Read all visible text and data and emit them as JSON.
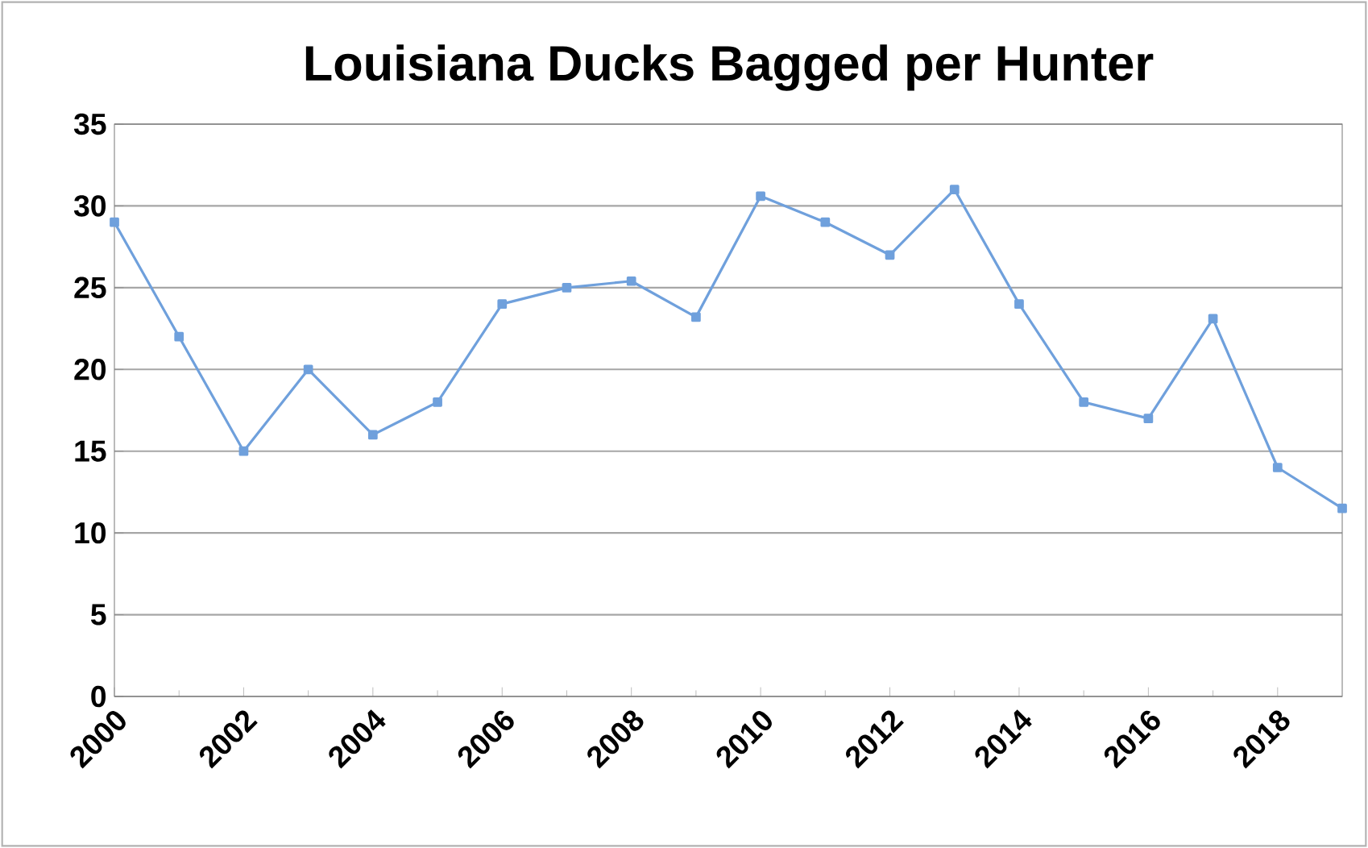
{
  "chart_data": {
    "type": "line",
    "title": "Louisiana Ducks Bagged per Hunter",
    "x": [
      2000,
      2001,
      2002,
      2003,
      2004,
      2005,
      2006,
      2007,
      2008,
      2009,
      2010,
      2011,
      2012,
      2013,
      2014,
      2015,
      2016,
      2017,
      2018,
      2019
    ],
    "series": [
      {
        "color": "#6fa0dc",
        "values": [
          29,
          22,
          15,
          20,
          16,
          18,
          24,
          25,
          25.4,
          23.2,
          30.6,
          29,
          27,
          31,
          24,
          18,
          17,
          23.1,
          14,
          11.5
        ]
      }
    ],
    "xlim": [
      2000,
      2019
    ],
    "xticks": [
      2000,
      2002,
      2004,
      2006,
      2008,
      2010,
      2012,
      2014,
      2016,
      2018
    ],
    "ylim": [
      0,
      35
    ],
    "yticks": [
      0,
      5,
      10,
      15,
      20,
      25,
      30,
      35
    ],
    "grid": "y",
    "marker": "square",
    "line_style": "solid"
  }
}
